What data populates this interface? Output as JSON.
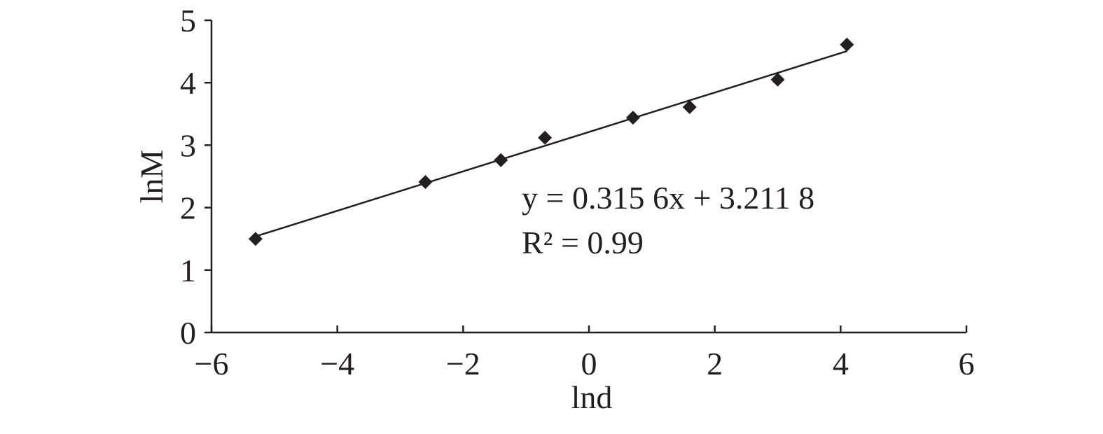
{
  "chart_data": {
    "type": "scatter",
    "x_label": "lnd",
    "y_label": "lnM",
    "x": [
      -5.3,
      -2.6,
      -1.4,
      -0.7,
      0.7,
      1.6,
      3.0,
      4.1
    ],
    "values": [
      1.5,
      2.41,
      2.76,
      3.12,
      3.44,
      3.61,
      4.05,
      4.61
    ],
    "color": "#231f20",
    "trendline": {
      "slope": 0.3156,
      "intercept": 3.2118
    },
    "annotations": [
      "y = 0.315 6x + 3.211 8",
      "R² = 0.99"
    ],
    "xlim": [
      -6,
      6
    ],
    "xticks": [
      {
        "value": -6,
        "label": "−6"
      },
      {
        "value": -4,
        "label": "−4"
      },
      {
        "value": -2,
        "label": "−2"
      },
      0,
      2,
      4,
      6
    ],
    "ylim": [
      0,
      5
    ],
    "yticks": [
      0,
      1,
      2,
      3,
      4,
      5
    ],
    "grid": false
  }
}
